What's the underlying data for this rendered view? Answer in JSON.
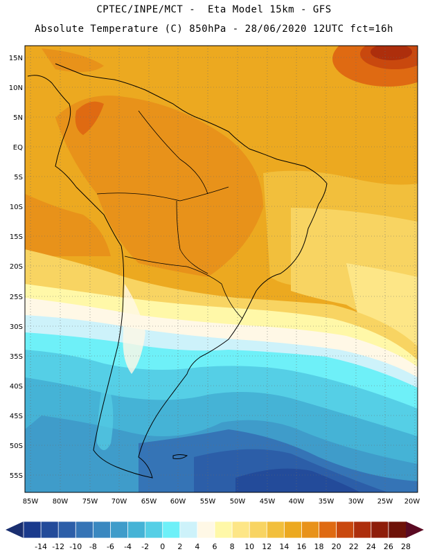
{
  "header": {
    "title_line1": "CPTEC/INPE/MCT -  Eta Model 15km - GFS",
    "title_line2": "Absolute Temperature (C) 850hPa - 28/06/2020 12UTC fct=16h"
  },
  "map": {
    "region": "South America",
    "variable": "Absolute Temperature (C) 850hPa",
    "lat_labels": [
      "15N",
      "10N",
      "5N",
      "EQ",
      "5S",
      "10S",
      "15S",
      "20S",
      "25S",
      "30S",
      "35S",
      "40S",
      "45S",
      "50S",
      "55S"
    ],
    "lon_labels": [
      "85W",
      "80W",
      "75W",
      "70W",
      "65W",
      "60W",
      "55W",
      "50W",
      "45W",
      "40W",
      "35W",
      "30W",
      "25W",
      "20W"
    ]
  },
  "colorbar": {
    "labels": [
      "-14",
      "-12",
      "-10",
      "-8",
      "-6",
      "-4",
      "-2",
      "0",
      "2",
      "4",
      "6",
      "8",
      "10",
      "12",
      "14",
      "16",
      "18",
      "20",
      "22",
      "24",
      "26",
      "28"
    ],
    "colors": [
      "#1a3a8c",
      "#234b9a",
      "#2c5ea8",
      "#3574b6",
      "#3a88c0",
      "#3f9cca",
      "#45b3d6",
      "#55cfe6",
      "#6ef0f8",
      "#cdf2fa",
      "#fff8e6",
      "#fff8a8",
      "#fde687",
      "#f8d462",
      "#f2bf3c",
      "#eca920",
      "#e8921a",
      "#df6a12",
      "#c9480e",
      "#ad2e0c",
      "#8e1d0a",
      "#6e1208"
    ],
    "arrow_left_color": "#1a2f70",
    "arrow_right_color": "#5a0a22"
  }
}
